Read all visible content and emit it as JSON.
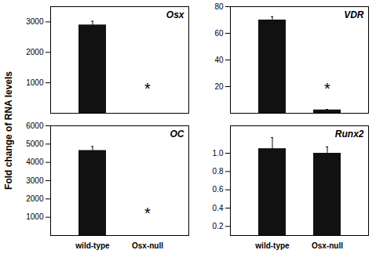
{
  "chart_data": [
    {
      "type": "bar",
      "title": "Osx",
      "ylabel": "Fold change of RNA levels",
      "categories": [
        null,
        null
      ],
      "values": [
        2900,
        null
      ],
      "errors": [
        120,
        null
      ],
      "color": "#111111",
      "ylim": [
        0,
        3500
      ],
      "yticks": [
        1000,
        2000,
        3000
      ],
      "annotations": [
        {
          "text": "*",
          "category_index": 1,
          "y": 800
        }
      ]
    },
    {
      "type": "bar",
      "title": "VDR",
      "categories": [
        null,
        null
      ],
      "values": [
        70,
        2.5
      ],
      "errors": [
        2.5,
        0.4
      ],
      "color": "#111111",
      "ylim": [
        0,
        80
      ],
      "yticks": [
        20,
        40,
        60,
        80
      ],
      "annotations": [
        {
          "text": "*",
          "category_index": 1,
          "y": 18
        }
      ]
    },
    {
      "type": "bar",
      "title": "OC",
      "categories": [
        "wild-type",
        "Osx-null"
      ],
      "values": [
        4650,
        null
      ],
      "errors": [
        220,
        null
      ],
      "color": "#111111",
      "ylim": [
        0,
        6000
      ],
      "yticks": [
        1000,
        2000,
        3000,
        4000,
        5000,
        6000
      ],
      "annotations": [
        {
          "text": "*",
          "category_index": 1,
          "y": 1200
        }
      ]
    },
    {
      "type": "bar",
      "title": "Runx2",
      "categories": [
        "wild-type",
        "Osx-null"
      ],
      "values": [
        1.05,
        1.0
      ],
      "errors": [
        0.12,
        0.07
      ],
      "color": "#111111",
      "ylim": [
        0.1,
        1.3
      ],
      "yticks": [
        0.2,
        0.4,
        0.6,
        0.8,
        {
          "value": 1.0,
          "label": "1.0"
        }
      ]
    }
  ]
}
